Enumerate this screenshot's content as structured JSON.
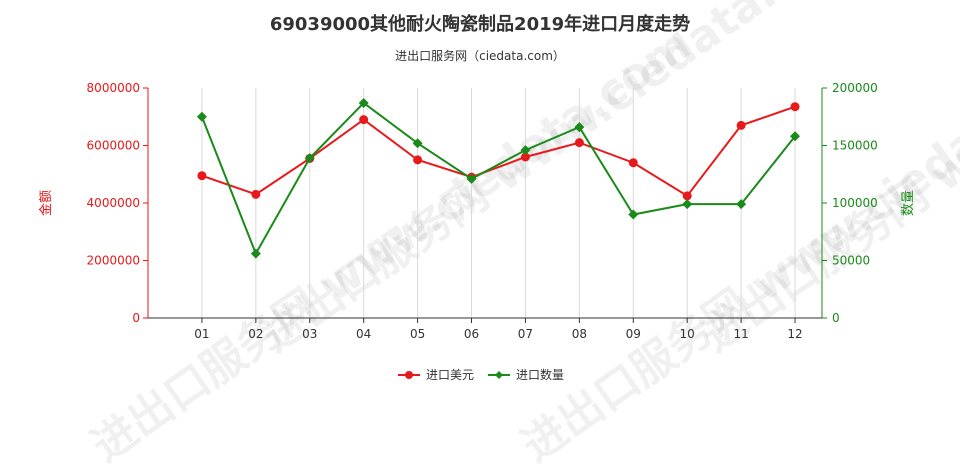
{
  "title": "69039000其他耐火陶瓷制品2019年进口月度走势",
  "subtitle": "进出口服务网（ciedata.com）",
  "watermark": "进出口服务网 www.ciedata.com",
  "chart_data": {
    "type": "line",
    "categories": [
      "01",
      "02",
      "03",
      "04",
      "05",
      "06",
      "07",
      "08",
      "09",
      "10",
      "11",
      "12"
    ],
    "series": [
      {
        "name": "进口美元",
        "axis": "left",
        "color": "#e8191b",
        "marker": "circle",
        "values": [
          4950000,
          4300000,
          5550000,
          6900000,
          5500000,
          4900000,
          5600000,
          6100000,
          5400000,
          4250000,
          6700000,
          7350000
        ]
      },
      {
        "name": "进口数量",
        "axis": "right",
        "color": "#1a8a1a",
        "marker": "diamond",
        "values": [
          175000,
          56000,
          139000,
          187000,
          152000,
          121000,
          146000,
          166000,
          90000,
          99000,
          99000,
          158000
        ]
      }
    ],
    "y_left": {
      "label": "金额",
      "min": 0,
      "max": 8000000,
      "ticks": [
        "0",
        "2000000",
        "4000000",
        "6000000",
        "8000000"
      ],
      "color": "#e8191b"
    },
    "y_right": {
      "label": "数量",
      "min": 0,
      "max": 200000,
      "ticks": [
        "0",
        "50000",
        "100000",
        "150000",
        "200000"
      ],
      "color": "#1a8a1a"
    },
    "grid": "vertical",
    "legend": "bottom-center"
  }
}
